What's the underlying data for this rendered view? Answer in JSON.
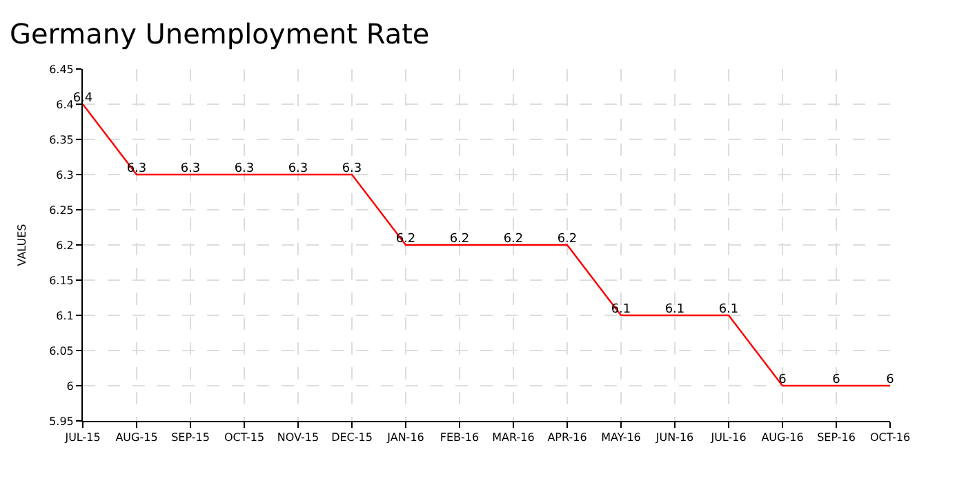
{
  "chart_data": {
    "type": "line",
    "title": "Germany Unemployment Rate",
    "ylabel": "VALUES",
    "categories": [
      "JUL-15",
      "AUG-15",
      "SEP-15",
      "OCT-15",
      "NOV-15",
      "DEC-15",
      "JAN-16",
      "FEB-16",
      "MAR-16",
      "APR-16",
      "MAY-16",
      "JUN-16",
      "JUL-16",
      "AUG-16",
      "SEP-16",
      "OCT-16"
    ],
    "series": [
      {
        "color": "#ff0000",
        "values": [
          6.4,
          6.3,
          6.3,
          6.3,
          6.3,
          6.3,
          6.2,
          6.2,
          6.2,
          6.2,
          6.1,
          6.1,
          6.1,
          6.0,
          6.0,
          6.0
        ]
      }
    ],
    "ylim": [
      5.95,
      6.45
    ],
    "yticks": [
      5.95,
      {
        "value": 6,
        "label": "6"
      },
      6.05,
      6.1,
      6.15,
      6.2,
      6.25,
      6.3,
      6.35,
      6.4,
      6.45
    ],
    "grid": true,
    "data_labels": true,
    "marker": "none",
    "line_style": "solid",
    "legend": false
  }
}
